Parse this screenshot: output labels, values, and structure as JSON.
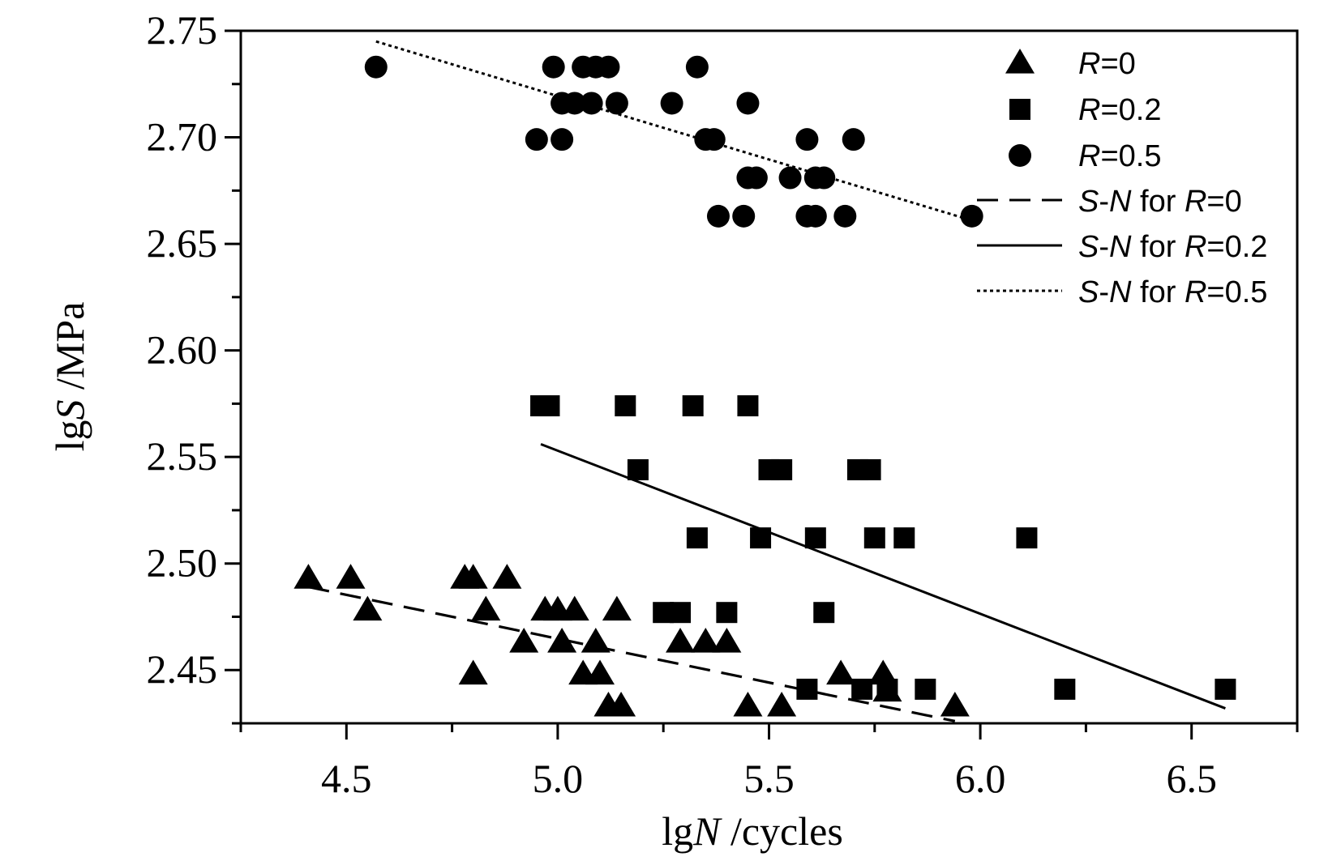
{
  "chart_data": {
    "type": "scatter",
    "title": "",
    "xlabel": {
      "prefix": "lg",
      "symbol": "N",
      "unit": " /cycles"
    },
    "ylabel": {
      "prefix": "lg",
      "symbol": "S",
      "unit": " /MPa"
    },
    "xlim": [
      4.25,
      6.75
    ],
    "ylim": [
      2.425,
      2.75
    ],
    "xticks": [
      "4.5",
      "5.0",
      "5.5",
      "6.0",
      "6.5"
    ],
    "yticks": [
      "2.45",
      "2.50",
      "2.55",
      "2.60",
      "2.65",
      "2.70",
      "2.75"
    ],
    "legend_position": "top-right",
    "series": [
      {
        "name": "R=0",
        "marker": "triangle",
        "points": [
          [
            4.41,
            2.493
          ],
          [
            4.51,
            2.493
          ],
          [
            4.55,
            2.478
          ],
          [
            4.78,
            2.493
          ],
          [
            4.8,
            2.493
          ],
          [
            4.88,
            2.493
          ],
          [
            4.83,
            2.478
          ],
          [
            4.8,
            2.448
          ],
          [
            4.92,
            2.463
          ],
          [
            4.97,
            2.478
          ],
          [
            5.0,
            2.478
          ],
          [
            5.04,
            2.478
          ],
          [
            5.01,
            2.463
          ],
          [
            5.06,
            2.448
          ],
          [
            5.09,
            2.463
          ],
          [
            5.1,
            2.448
          ],
          [
            5.12,
            2.433
          ],
          [
            5.14,
            2.478
          ],
          [
            5.15,
            2.433
          ],
          [
            5.29,
            2.463
          ],
          [
            5.35,
            2.463
          ],
          [
            5.4,
            2.463
          ],
          [
            5.45,
            2.433
          ],
          [
            5.53,
            2.433
          ],
          [
            5.67,
            2.448
          ],
          [
            5.77,
            2.448
          ],
          [
            5.78,
            2.44
          ],
          [
            5.94,
            2.433
          ]
        ]
      },
      {
        "name": "R=0.2",
        "marker": "square",
        "points": [
          [
            4.96,
            2.574
          ],
          [
            4.98,
            2.574
          ],
          [
            5.16,
            2.574
          ],
          [
            5.32,
            2.574
          ],
          [
            5.45,
            2.574
          ],
          [
            5.19,
            2.544
          ],
          [
            5.5,
            2.544
          ],
          [
            5.53,
            2.544
          ],
          [
            5.71,
            2.544
          ],
          [
            5.74,
            2.544
          ],
          [
            5.33,
            2.512
          ],
          [
            5.48,
            2.512
          ],
          [
            5.61,
            2.512
          ],
          [
            5.75,
            2.512
          ],
          [
            5.82,
            2.512
          ],
          [
            6.11,
            2.512
          ],
          [
            5.25,
            2.477
          ],
          [
            5.29,
            2.477
          ],
          [
            5.4,
            2.477
          ],
          [
            5.63,
            2.477
          ],
          [
            5.59,
            2.441
          ],
          [
            5.72,
            2.441
          ],
          [
            5.78,
            2.441
          ],
          [
            5.87,
            2.441
          ],
          [
            6.2,
            2.441
          ],
          [
            6.58,
            2.441
          ]
        ]
      },
      {
        "name": "R=0.5",
        "marker": "circle",
        "points": [
          [
            4.57,
            2.733
          ],
          [
            4.99,
            2.733
          ],
          [
            5.06,
            2.733
          ],
          [
            5.09,
            2.733
          ],
          [
            5.12,
            2.733
          ],
          [
            5.33,
            2.733
          ],
          [
            5.01,
            2.716
          ],
          [
            5.04,
            2.716
          ],
          [
            5.08,
            2.716
          ],
          [
            5.14,
            2.716
          ],
          [
            5.27,
            2.716
          ],
          [
            5.45,
            2.716
          ],
          [
            4.95,
            2.699
          ],
          [
            5.01,
            2.699
          ],
          [
            5.35,
            2.699
          ],
          [
            5.37,
            2.699
          ],
          [
            5.59,
            2.699
          ],
          [
            5.7,
            2.699
          ],
          [
            5.45,
            2.681
          ],
          [
            5.47,
            2.681
          ],
          [
            5.55,
            2.681
          ],
          [
            5.61,
            2.681
          ],
          [
            5.63,
            2.681
          ],
          [
            5.38,
            2.663
          ],
          [
            5.44,
            2.663
          ],
          [
            5.59,
            2.663
          ],
          [
            5.61,
            2.663
          ],
          [
            5.68,
            2.663
          ],
          [
            5.98,
            2.663
          ]
        ]
      }
    ],
    "fits": [
      {
        "name": "S-N for R=0",
        "style": "dashed",
        "x": [
          4.41,
          5.94
        ],
        "y": [
          2.489,
          2.426
        ]
      },
      {
        "name": "S-N for R=0.2",
        "style": "solid",
        "x": [
          4.96,
          6.58
        ],
        "y": [
          2.556,
          2.432
        ]
      },
      {
        "name": "S-N for R=0.5",
        "style": "dotted",
        "x": [
          4.57,
          5.98
        ],
        "y": [
          2.745,
          2.661
        ]
      }
    ],
    "legend": [
      {
        "kind": "marker",
        "marker": "triangle",
        "label_italic": "R",
        "label_rest": "=0"
      },
      {
        "kind": "marker",
        "marker": "square",
        "label_italic": "R",
        "label_rest": "=0.2"
      },
      {
        "kind": "marker",
        "marker": "circle",
        "label_italic": "R",
        "label_rest": "=0.5"
      },
      {
        "kind": "line",
        "style": "dashed",
        "label_italic": "S",
        "label_rest": "-",
        "label_italic2": "N",
        "label_mid": " for ",
        "label_italic3": "R",
        "label_end": "=0"
      },
      {
        "kind": "line",
        "style": "solid",
        "label_italic": "S",
        "label_rest": "-",
        "label_italic2": "N",
        "label_mid": " for ",
        "label_italic3": "R",
        "label_end": "=0.2"
      },
      {
        "kind": "line",
        "style": "dotted",
        "label_italic": "S",
        "label_rest": "-",
        "label_italic2": "N",
        "label_mid": " for ",
        "label_italic3": "R",
        "label_end": "=0.5"
      }
    ]
  }
}
